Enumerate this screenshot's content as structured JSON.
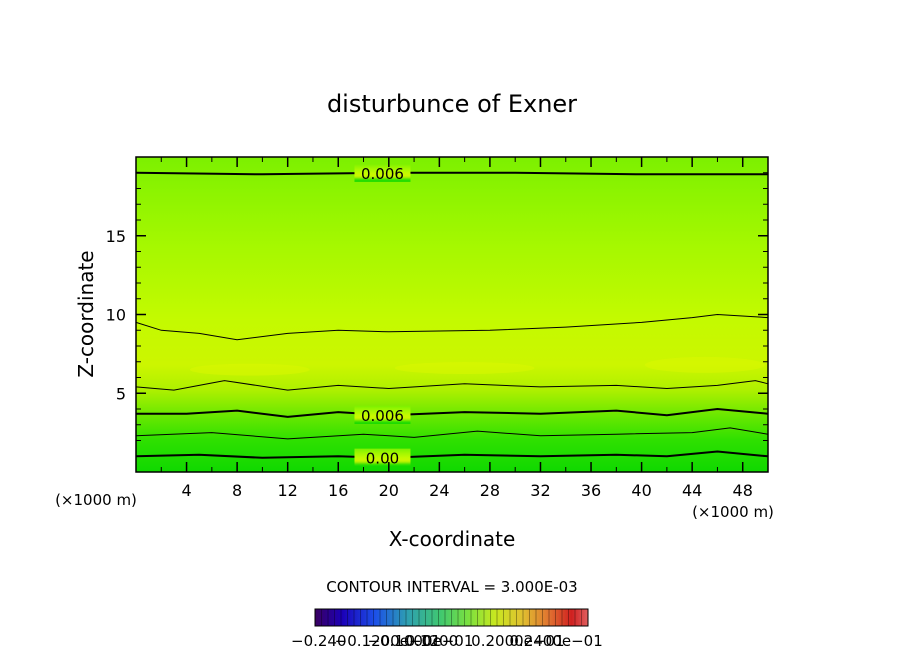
{
  "chart_data": {
    "type": "heatmap",
    "title": "disturbunce of Exner",
    "xlabel": "X-coordinate",
    "ylabel": "Z-coordinate",
    "x_unit": "(×1000 m)",
    "y_unit": "(×1000 m)",
    "xlim": [
      0,
      50
    ],
    "ylim": [
      0,
      20
    ],
    "x_ticks": [
      4,
      8,
      12,
      16,
      20,
      24,
      28,
      32,
      36,
      40,
      44,
      48
    ],
    "y_ticks": [
      5,
      10,
      15
    ],
    "contour_interval_label": "CONTOUR INTERVAL = 3.000E-03",
    "contours": [
      {
        "style": "thick",
        "label": "0.00",
        "label_x": 19.5,
        "x": [
          0,
          5,
          10,
          16,
          20,
          26,
          32,
          38,
          42,
          46,
          50
        ],
        "z": [
          1.0,
          1.1,
          0.9,
          1.0,
          0.9,
          1.1,
          1.0,
          1.1,
          1.0,
          1.3,
          1.0
        ]
      },
      {
        "style": "thin",
        "label": "",
        "x": [
          0,
          6,
          12,
          18,
          22,
          27,
          32,
          38,
          44,
          47,
          50
        ],
        "z": [
          2.3,
          2.5,
          2.1,
          2.4,
          2.2,
          2.6,
          2.3,
          2.4,
          2.5,
          2.8,
          2.4
        ]
      },
      {
        "style": "thick",
        "label": "0.006",
        "label_x": 19.5,
        "x": [
          0,
          4,
          8,
          12,
          16,
          20,
          26,
          32,
          38,
          42,
          46,
          50
        ],
        "z": [
          3.7,
          3.7,
          3.9,
          3.5,
          3.8,
          3.6,
          3.8,
          3.7,
          3.9,
          3.6,
          4.0,
          3.7
        ]
      },
      {
        "style": "thin",
        "label": "",
        "x": [
          0,
          3,
          7,
          12,
          16,
          20,
          26,
          32,
          38,
          42,
          46,
          49,
          50
        ],
        "z": [
          5.4,
          5.2,
          5.8,
          5.2,
          5.5,
          5.3,
          5.6,
          5.4,
          5.5,
          5.3,
          5.5,
          5.8,
          5.6
        ]
      },
      {
        "style": "thin",
        "label": "",
        "x": [
          0,
          2,
          5,
          8,
          12,
          16,
          20,
          28,
          34,
          40,
          44,
          46,
          50
        ],
        "z": [
          9.5,
          9.0,
          8.8,
          8.4,
          8.8,
          9.0,
          8.9,
          9.0,
          9.2,
          9.5,
          9.8,
          10.0,
          9.8
        ]
      },
      {
        "style": "thick",
        "label": "0.006",
        "label_x": 19.5,
        "x": [
          0,
          10,
          20,
          30,
          40,
          50
        ],
        "z": [
          19.0,
          18.9,
          19.0,
          19.0,
          18.9,
          18.9
        ]
      }
    ],
    "colorbar": {
      "tick_labels": [
        "−0.240",
        "−0.1200e−01",
        "−0.1000e−01",
        "0.1200",
        "0.2000e−01",
        "0.2400e−01"
      ],
      "colors": [
        "#3a0060",
        "#1b00b8",
        "#1c50e8",
        "#2ea0b0",
        "#40c870",
        "#7ae040",
        "#c8e820",
        "#e0c030",
        "#e07030",
        "#d02020",
        "#e06060"
      ]
    }
  }
}
